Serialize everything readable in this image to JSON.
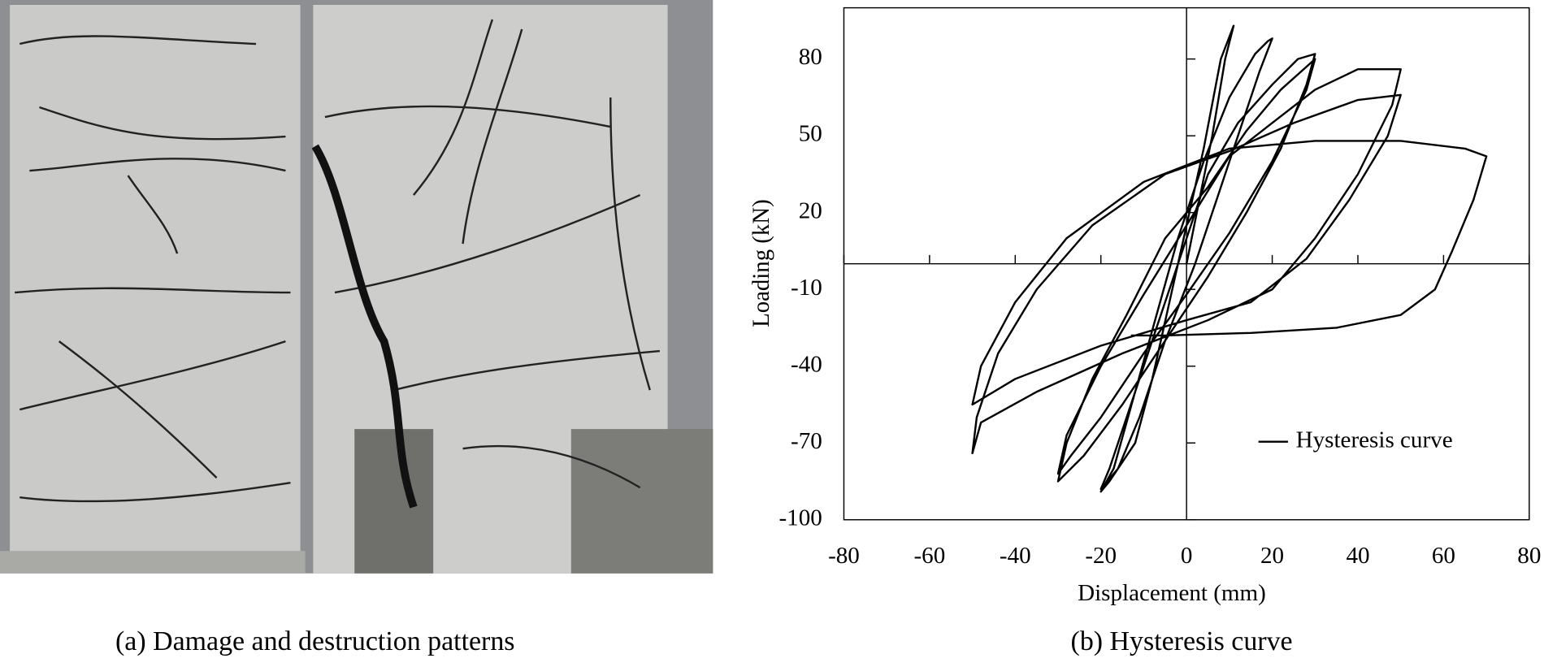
{
  "captions": [
    "(a) Damage and destruction patterns",
    "(b) Hysteresis curve"
  ],
  "chart_data": {
    "type": "line",
    "xlabel": "Displacement (mm)",
    "ylabel": "Loading (kN)",
    "xlim": [
      -80,
      80
    ],
    "xticks": [
      -80,
      -60,
      -40,
      -20,
      0,
      20,
      40,
      60,
      80
    ],
    "ylim": [
      -100,
      100
    ],
    "yticks": [
      -100,
      -70,
      -40,
      -10,
      20,
      50,
      80
    ],
    "grid": false,
    "legend": "lower right",
    "series": [
      {
        "name": "Hysteresis curve",
        "color": "#000000",
        "x": [
          0,
          3,
          6,
          9,
          11,
          8,
          4,
          0,
          -4,
          -8,
          -12,
          -18,
          -20,
          -17,
          -12,
          -7,
          -2,
          4,
          10,
          16,
          19,
          20,
          17,
          12,
          7,
          2,
          -5,
          -11,
          -16,
          -20,
          -18,
          -13,
          -7,
          -1,
          5,
          12,
          20,
          26,
          30,
          28,
          22,
          14,
          5,
          -5,
          -15,
          -24,
          -30,
          -28,
          -22,
          -14,
          -5,
          5,
          14,
          22,
          28,
          30,
          28,
          20,
          10,
          0,
          -10,
          -20,
          -27,
          -30,
          -28,
          -20,
          -10,
          0,
          10,
          20,
          30,
          40,
          50,
          48,
          40,
          30,
          20,
          5,
          -15,
          -35,
          -48,
          -50,
          -49,
          -44,
          -35,
          -22,
          -5,
          10,
          25,
          40,
          50,
          47,
          38,
          28,
          15,
          0,
          -20,
          -40,
          -50,
          -48,
          -40,
          -28,
          -10,
          10,
          30,
          50,
          65,
          70,
          67,
          62,
          58,
          50,
          35,
          15,
          -5,
          -13
        ],
        "values": [
          0,
          25,
          50,
          80,
          93,
          80,
          45,
          15,
          -15,
          -45,
          -70,
          -85,
          -89,
          -80,
          -50,
          -20,
          10,
          40,
          65,
          82,
          87,
          88,
          75,
          50,
          25,
          0,
          -30,
          -60,
          -80,
          -88,
          -80,
          -55,
          -25,
          5,
          35,
          55,
          70,
          80,
          82,
          70,
          45,
          20,
          -5,
          -30,
          -55,
          -75,
          -85,
          -70,
          -45,
          -20,
          10,
          30,
          52,
          68,
          77,
          80,
          68,
          40,
          12,
          -12,
          -35,
          -60,
          -75,
          -82,
          -67,
          -40,
          -12,
          15,
          42,
          55,
          68,
          76,
          76,
          62,
          35,
          10,
          -10,
          -22,
          -35,
          -50,
          -62,
          -74,
          -60,
          -35,
          -10,
          15,
          35,
          44,
          55,
          64,
          66,
          50,
          25,
          2,
          -15,
          -22,
          -32,
          -45,
          -55,
          -40,
          -15,
          10,
          32,
          45,
          48,
          48,
          45,
          42,
          25,
          5,
          -10,
          -20,
          -25,
          -27,
          -28,
          -28
        ]
      }
    ]
  }
}
